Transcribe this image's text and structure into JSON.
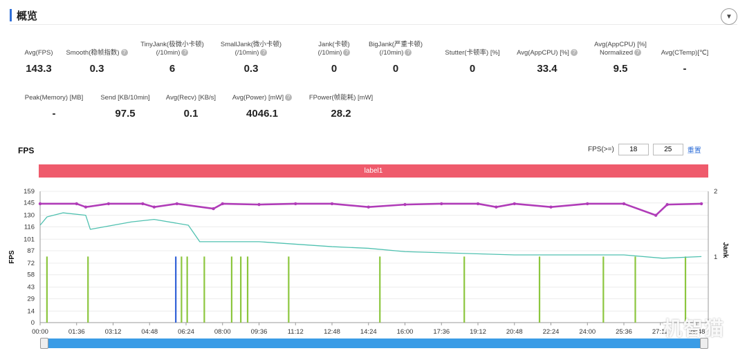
{
  "header": {
    "title": "概览"
  },
  "metrics_row1": [
    {
      "label1": "Avg(FPS)",
      "label2": "",
      "value": "143.3",
      "help": false
    },
    {
      "label1": "Smooth(稳帧指数)",
      "label2": "",
      "value": "0.3",
      "help": true
    },
    {
      "label1": "TinyJank(极微小卡顿)",
      "label2": "(/10min)",
      "value": "6",
      "help": true
    },
    {
      "label1": "SmallJank(微小卡顿)",
      "label2": "(/10min)",
      "value": "0.3",
      "help": true
    },
    {
      "label1": "Jank(卡顿)",
      "label2": "(/10min)",
      "value": "0",
      "help": true
    },
    {
      "label1": "BigJank(严重卡顿)",
      "label2": "(/10min)",
      "value": "0",
      "help": true
    },
    {
      "label1": "Stutter(卡顿率) [%]",
      "label2": "",
      "value": "0",
      "help": false
    },
    {
      "label1": "Avg(AppCPU) [%]",
      "label2": "",
      "value": "33.4",
      "help": true
    },
    {
      "label1": "Avg(AppCPU) [%]",
      "label2": "Normalized",
      "value": "9.5",
      "help": true
    },
    {
      "label1": "Avg(CTemp)[℃]",
      "label2": "",
      "value": "-",
      "help": false
    }
  ],
  "metrics_row2": [
    {
      "label1": "Peak(Memory) [MB]",
      "value": "-",
      "help": false
    },
    {
      "label1": "Send [KB/10min]",
      "value": "97.5",
      "help": false
    },
    {
      "label1": "Avg(Recv) [KB/s]",
      "value": "0.1",
      "help": false
    },
    {
      "label1": "Avg(Power) [mW]",
      "value": "4046.1",
      "help": true
    },
    {
      "label1": "FPower(帧能耗) [mW]",
      "value": "28.2",
      "help": false
    }
  ],
  "fps_section": {
    "title": "FPS",
    "filter_label": "FPS(>=)",
    "filter_value_1": "18",
    "filter_value_2": "25",
    "reset_label": "重置",
    "segment_label": "label1"
  },
  "watermark": "机智猫",
  "chart_data": {
    "type": "line",
    "xlabel": "",
    "ylabel": "FPS",
    "y2label": "Jank",
    "ylim": [
      0,
      159
    ],
    "y2lim": [
      0,
      2
    ],
    "y_ticks": [
      "0",
      "14",
      "29",
      "43",
      "58",
      "72",
      "87",
      "101",
      "116",
      "130",
      "145",
      "159"
    ],
    "y2_ticks": [
      "1",
      "2"
    ],
    "x_ticks": [
      "00:00",
      "01:36",
      "03:12",
      "04:48",
      "06:24",
      "08:00",
      "09:36",
      "11:12",
      "12:48",
      "14:24",
      "16:00",
      "17:36",
      "19:12",
      "20:48",
      "22:24",
      "24:00",
      "25:36",
      "27:12",
      "28:48"
    ],
    "series": [
      {
        "name": "FPS",
        "color": "#b03cb8",
        "x_minutes": [
          0,
          1.6,
          2,
          3,
          4.5,
          5,
          6,
          7.6,
          8,
          9.6,
          11.2,
          12.8,
          14.4,
          16,
          17.6,
          19.2,
          20,
          20.8,
          22.4,
          24,
          25.6,
          27,
          27.5,
          29
        ],
        "values": [
          144,
          144,
          140,
          144,
          144,
          140,
          144,
          138,
          144,
          143,
          144,
          144,
          140,
          143,
          144,
          144,
          140,
          144,
          140,
          144,
          144,
          130,
          143,
          144
        ]
      },
      {
        "name": "",
        "color": "#4fc1b0",
        "x_minutes": [
          0,
          0.3,
          1,
          2,
          2.2,
          4,
          5,
          6.5,
          7,
          9.6,
          12.8,
          14.4,
          16,
          20.8,
          25.6,
          27.3,
          29
        ],
        "values": [
          118,
          128,
          133,
          130,
          113,
          122,
          125,
          118,
          98,
          98,
          92,
          90,
          86,
          82,
          82,
          78,
          80
        ]
      }
    ],
    "jank_spikes_minutes": [
      0.3,
      2.1,
      6.2,
      6.45,
      7.2,
      8.4,
      8.8,
      9.1,
      10.9,
      14.9,
      18.6,
      21.9,
      24.7,
      26.1,
      28.3
    ],
    "blue_spike_minutes": 5.95,
    "jank_color": "#8cc63e",
    "blue_color": "#3060d8"
  }
}
